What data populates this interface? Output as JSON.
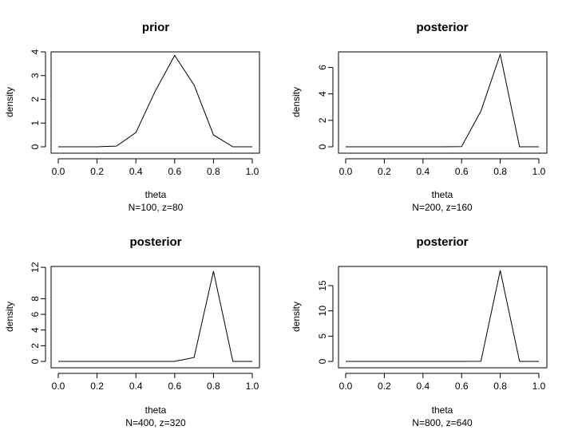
{
  "chart_data": [
    {
      "type": "line",
      "title": "prior",
      "xlabel": "theta",
      "sublabel": "N=100, z=80",
      "ylabel": "density",
      "xlim": [
        0,
        1
      ],
      "ylim": [
        0,
        4
      ],
      "xticks": [
        "0.0",
        "0.2",
        "0.4",
        "0.6",
        "0.8",
        "1.0"
      ],
      "yticks": [
        "0",
        "1",
        "2",
        "3",
        "4"
      ],
      "series": [
        {
          "x": [
            0,
            0.1,
            0.2,
            0.3,
            0.4,
            0.5,
            0.6,
            0.7,
            0.8,
            0.9,
            1.0
          ],
          "y": [
            0,
            0,
            0,
            0.03,
            0.6,
            2.35,
            3.85,
            2.6,
            0.5,
            0,
            0
          ]
        }
      ]
    },
    {
      "type": "line",
      "title": "posterior",
      "xlabel": "theta",
      "sublabel": "N=200, z=160",
      "ylabel": "density",
      "xlim": [
        0,
        1
      ],
      "ylim": [
        0,
        7
      ],
      "xticks": [
        "0.0",
        "0.2",
        "0.4",
        "0.6",
        "0.8",
        "1.0"
      ],
      "yticks": [
        "0",
        "2",
        "4",
        "6"
      ],
      "series": [
        {
          "x": [
            0,
            0.1,
            0.2,
            0.3,
            0.4,
            0.5,
            0.6,
            0.7,
            0.8,
            0.9,
            1.0
          ],
          "y": [
            0,
            0,
            0,
            0,
            0,
            0,
            0.02,
            2.7,
            7.0,
            0,
            0
          ]
        }
      ]
    },
    {
      "type": "line",
      "title": "posterior",
      "xlabel": "theta",
      "sublabel": "N=400, z=320",
      "ylabel": "density",
      "xlim": [
        0,
        1
      ],
      "ylim": [
        0,
        11.5
      ],
      "xticks": [
        "0.0",
        "0.2",
        "0.4",
        "0.6",
        "0.8",
        "1.0"
      ],
      "yticks": [
        "0",
        "2",
        "4",
        "6",
        "8",
        "12"
      ],
      "series": [
        {
          "x": [
            0,
            0.1,
            0.2,
            0.3,
            0.4,
            0.5,
            0.6,
            0.7,
            0.8,
            0.9,
            1.0
          ],
          "y": [
            0,
            0,
            0,
            0,
            0,
            0,
            0,
            0.5,
            11.5,
            0,
            0
          ]
        }
      ]
    },
    {
      "type": "line",
      "title": "posterior",
      "xlabel": "theta",
      "sublabel": "N=800, z=640",
      "ylabel": "density",
      "xlim": [
        0,
        1
      ],
      "ylim": [
        0,
        18
      ],
      "xticks": [
        "0.0",
        "0.2",
        "0.4",
        "0.6",
        "0.8",
        "1.0"
      ],
      "yticks": [
        "0",
        "5",
        "10",
        "15"
      ],
      "series": [
        {
          "x": [
            0,
            0.1,
            0.2,
            0.3,
            0.4,
            0.5,
            0.6,
            0.7,
            0.8,
            0.9,
            1.0
          ],
          "y": [
            0,
            0,
            0,
            0,
            0,
            0,
            0,
            0.02,
            18.0,
            0,
            0
          ]
        }
      ]
    }
  ]
}
